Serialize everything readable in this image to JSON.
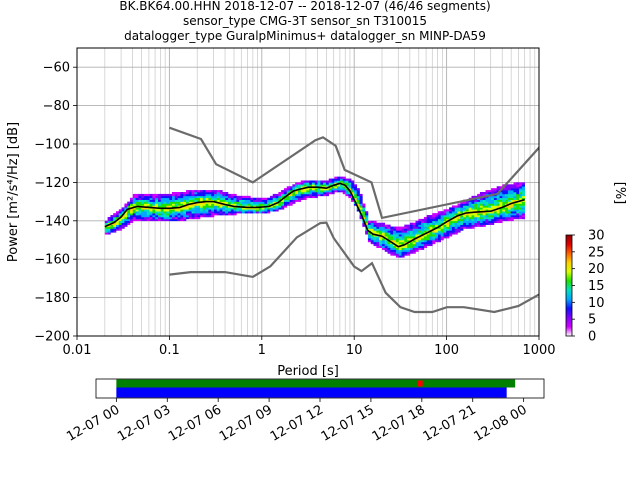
{
  "title_lines": [
    "BK.BK64.00.HHN   2018-12-07 -- 2018-12-07  (46/46 segments)",
    "sensor_type CMG-3T sensor_sn T310015",
    "datalogger_type GuralpMinimus+ datalogger_sn MINP-DA59"
  ],
  "chart_data": {
    "type": "heatmap",
    "xlabel": "Period [s]",
    "ylabel": "Power [m²/s⁴/Hz] [dB]",
    "xscale": "log",
    "xlim": [
      0.01,
      1000
    ],
    "ylim": [
      -200,
      -50
    ],
    "x_ticks": [
      {
        "value": 0.01,
        "label": "0.01"
      },
      {
        "value": 0.1,
        "label": "0.1"
      },
      {
        "value": 1,
        "label": "1"
      },
      {
        "value": 10,
        "label": "10"
      },
      {
        "value": 100,
        "label": "100"
      },
      {
        "value": 1000,
        "label": "1000"
      }
    ],
    "y_ticks": [
      {
        "value": -60,
        "label": "−60"
      },
      {
        "value": -80,
        "label": "−80"
      },
      {
        "value": -100,
        "label": "−100"
      },
      {
        "value": -120,
        "label": "−120"
      },
      {
        "value": -140,
        "label": "−140"
      },
      {
        "value": -160,
        "label": "−160"
      },
      {
        "value": -180,
        "label": "−180"
      },
      {
        "value": -200,
        "label": "−200"
      }
    ],
    "grid": true,
    "noise_models": [
      {
        "points": [
          [
            0.1,
            -91.5
          ],
          [
            0.22,
            -97.4
          ],
          [
            0.32,
            -110.5
          ],
          [
            0.8,
            -120
          ],
          [
            3.8,
            -98
          ],
          [
            4.6,
            -96.5
          ],
          [
            6.3,
            -101
          ],
          [
            7.9,
            -113.5
          ],
          [
            15.4,
            -120
          ],
          [
            20,
            -138.5
          ],
          [
            354.8,
            -126
          ],
          [
            10000,
            -48.5
          ]
        ]
      },
      {
        "points": [
          [
            0.1,
            -168
          ],
          [
            0.17,
            -166.7
          ],
          [
            0.4,
            -166.7
          ],
          [
            0.8,
            -169.2
          ],
          [
            1.24,
            -163.7
          ],
          [
            2.4,
            -148.6
          ],
          [
            4.3,
            -141.2
          ],
          [
            5,
            -141
          ],
          [
            6,
            -149
          ],
          [
            10,
            -163.8
          ],
          [
            12,
            -166.2
          ],
          [
            15.6,
            -162.1
          ],
          [
            21.9,
            -177.5
          ],
          [
            31.6,
            -185
          ],
          [
            45,
            -187.5
          ],
          [
            70,
            -187.5
          ],
          [
            101,
            -185
          ],
          [
            154,
            -185
          ],
          [
            328,
            -187.5
          ],
          [
            600,
            -184.4
          ],
          [
            10000,
            -151.5
          ]
        ]
      }
    ],
    "median_curve": [
      [
        0.02,
        -143
      ],
      [
        0.025,
        -141
      ],
      [
        0.03,
        -138
      ],
      [
        0.035,
        -134
      ],
      [
        0.045,
        -132.5
      ],
      [
        0.06,
        -133
      ],
      [
        0.08,
        -133.5
      ],
      [
        0.1,
        -133.5
      ],
      [
        0.13,
        -133
      ],
      [
        0.16,
        -131.5
      ],
      [
        0.2,
        -130.5
      ],
      [
        0.25,
        -130
      ],
      [
        0.3,
        -130
      ],
      [
        0.4,
        -131.5
      ],
      [
        0.5,
        -132.5
      ],
      [
        0.7,
        -133
      ],
      [
        0.9,
        -133
      ],
      [
        1.2,
        -132.5
      ],
      [
        1.5,
        -130.5
      ],
      [
        1.8,
        -127.5
      ],
      [
        2.2,
        -124.5
      ],
      [
        2.6,
        -123.5
      ],
      [
        3.2,
        -122.5
      ],
      [
        4,
        -122.5
      ],
      [
        5,
        -123
      ],
      [
        6,
        -121.5
      ],
      [
        7,
        -120.5
      ],
      [
        8,
        -121.5
      ],
      [
        9,
        -124.5
      ],
      [
        10,
        -129
      ],
      [
        12,
        -137
      ],
      [
        14,
        -145
      ],
      [
        16,
        -147
      ],
      [
        20,
        -148
      ],
      [
        25,
        -151
      ],
      [
        30,
        -153.5
      ],
      [
        35,
        -152.5
      ],
      [
        45,
        -149.5
      ],
      [
        60,
        -146.5
      ],
      [
        80,
        -143.5
      ],
      [
        100,
        -140.5
      ],
      [
        130,
        -137.5
      ],
      [
        160,
        -136
      ],
      [
        200,
        -135.5
      ],
      [
        300,
        -135
      ],
      [
        400,
        -133
      ],
      [
        500,
        -131
      ],
      [
        700,
        -129
      ]
    ],
    "density_band": {
      "lower": [
        [
          0.02,
          -147
        ],
        [
          0.03,
          -144
        ],
        [
          0.04,
          -139
        ],
        [
          0.1,
          -140
        ],
        [
          0.2,
          -138
        ],
        [
          0.3,
          -137
        ],
        [
          0.5,
          -136
        ],
        [
          1,
          -136
        ],
        [
          1.5,
          -134
        ],
        [
          2,
          -131
        ],
        [
          3,
          -128
        ],
        [
          5,
          -126
        ],
        [
          7,
          -124
        ],
        [
          9,
          -128
        ],
        [
          11,
          -136
        ],
        [
          14,
          -150
        ],
        [
          20,
          -155
        ],
        [
          30,
          -159
        ],
        [
          40,
          -157
        ],
        [
          60,
          -153
        ],
        [
          100,
          -148
        ],
        [
          150,
          -144
        ],
        [
          250,
          -142
        ],
        [
          400,
          -140
        ],
        [
          700,
          -138
        ]
      ],
      "upper": [
        [
          0.02,
          -140
        ],
        [
          0.03,
          -134
        ],
        [
          0.04,
          -127
        ],
        [
          0.1,
          -126
        ],
        [
          0.2,
          -124
        ],
        [
          0.3,
          -124
        ],
        [
          0.5,
          -127
        ],
        [
          1,
          -129
        ],
        [
          1.5,
          -126
        ],
        [
          2,
          -122
        ],
        [
          3,
          -119
        ],
        [
          5,
          -119
        ],
        [
          7,
          -117
        ],
        [
          9,
          -119
        ],
        [
          11,
          -124
        ],
        [
          14,
          -140
        ],
        [
          20,
          -142
        ],
        [
          30,
          -144
        ],
        [
          40,
          -142
        ],
        [
          60,
          -138
        ],
        [
          100,
          -134
        ],
        [
          150,
          -130
        ],
        [
          250,
          -125
        ],
        [
          400,
          -122
        ],
        [
          700,
          -120
        ]
      ]
    },
    "colorbar": {
      "label": "[%]",
      "min": 0,
      "max": 30,
      "ticks": [
        {
          "value": 0,
          "label": "0"
        },
        {
          "value": 5,
          "label": "5"
        },
        {
          "value": 10,
          "label": "10"
        },
        {
          "value": 15,
          "label": "15"
        },
        {
          "value": 20,
          "label": "20"
        },
        {
          "value": 25,
          "label": "25"
        },
        {
          "value": 30,
          "label": "30"
        }
      ],
      "colors": [
        "#ffffff",
        "#d000ff",
        "#8000ff",
        "#1010ff",
        "#00a8ff",
        "#00e0c0",
        "#20e000",
        "#d8ff00",
        "#ffd000",
        "#ff6000",
        "#e00000",
        "#900000"
      ]
    },
    "data_coverage": {
      "tick_labels": [
        "12-07 00",
        "12-07 03",
        "12-07 06",
        "12-07 09",
        "12-07 12",
        "12-07 15",
        "12-07 18",
        "12-07 21",
        "12-08 00"
      ],
      "range_hours": [
        -1.2,
        25.2
      ],
      "data_span_hours": [
        0,
        23.5
      ],
      "psd_span_hours": [
        0,
        23.0
      ],
      "gap_at_hours": 17.9,
      "colors": {
        "data": "#008000",
        "psd": "#0000ff",
        "gap": "#ff0000"
      }
    }
  }
}
